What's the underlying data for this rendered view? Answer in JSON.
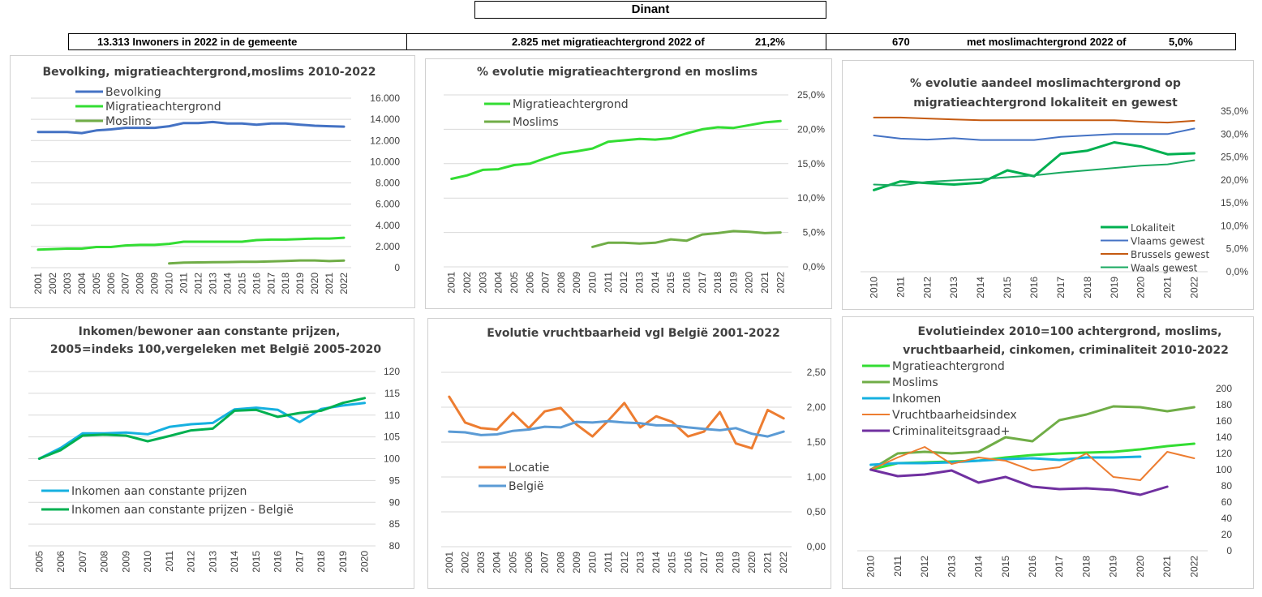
{
  "header": {
    "title": "Dinant",
    "stat1": "13.313 Inwoners in 2022 in de gemeente",
    "stat2a": "2.825 met migratieachtergrond 2022 of",
    "stat2b": "21,2%",
    "stat3a": "670",
    "stat3b": "met moslimachtergrond 2022 of",
    "stat3c": "5,0%"
  },
  "colors": {
    "bevolking": "#4472c4",
    "migratie": "#33dd33",
    "moslims": "#70ad47",
    "brussels": "#c55a11",
    "waals": "#19a960",
    "lokaliteit": "#00b050",
    "inkomen": "#16b0e0",
    "inkomen_belgie": "#00b050",
    "locatie": "#ed7d31",
    "belgie": "#5b9bd5",
    "criminaliteit": "#7030a0"
  },
  "chart_data": [
    {
      "id": "c1",
      "type": "line",
      "title": [
        "Bevolking, migratieachtergrond,moslims 2010-2022"
      ],
      "categories": [
        "2001",
        "2002",
        "2003",
        "2004",
        "2005",
        "2006",
        "2007",
        "2008",
        "2009",
        "2010",
        "2011",
        "2012",
        "2013",
        "2014",
        "2015",
        "2016",
        "2017",
        "2018",
        "2019",
        "2020",
        "2021",
        "2022"
      ],
      "ylim": [
        0,
        16000
      ],
      "yticks": [
        "0",
        "2.000",
        "4.000",
        "6.000",
        "8.000",
        "10.000",
        "12.000",
        "14.000",
        "16.000"
      ],
      "series": [
        {
          "name": "Bevolking",
          "color_key": "bevolking",
          "width": 3,
          "values": [
            12800,
            12800,
            12800,
            12700,
            12950,
            13050,
            13200,
            13200,
            13200,
            13350,
            13650,
            13650,
            13750,
            13600,
            13600,
            13500,
            13600,
            13600,
            13500,
            13400,
            13350,
            13313
          ]
        },
        {
          "name": "Migratieachtergrond",
          "color_key": "migratie",
          "width": 3,
          "values": [
            1700,
            1750,
            1800,
            1800,
            1950,
            1950,
            2100,
            2150,
            2150,
            2250,
            2450,
            2450,
            2450,
            2450,
            2450,
            2600,
            2650,
            2650,
            2700,
            2750,
            2750,
            2825
          ]
        },
        {
          "name": "Moslims",
          "color_key": "moslims",
          "width": 3,
          "values": [
            null,
            null,
            null,
            null,
            null,
            null,
            null,
            null,
            null,
            400,
            480,
            500,
            520,
            530,
            560,
            560,
            600,
            630,
            680,
            680,
            620,
            670
          ]
        }
      ]
    },
    {
      "id": "c2",
      "type": "line",
      "title": [
        "% evolutie migratieachtergrond  en moslims"
      ],
      "categories": [
        "2001",
        "2002",
        "2003",
        "2004",
        "2005",
        "2006",
        "2007",
        "2008",
        "2009",
        "2010",
        "2011",
        "2012",
        "2013",
        "2014",
        "2015",
        "2016",
        "2017",
        "2018",
        "2019",
        "2020",
        "2021",
        "2022"
      ],
      "ylim": [
        0,
        25
      ],
      "yticks": [
        "0,0%",
        "5,0%",
        "10,0%",
        "15,0%",
        "20,0%",
        "25,0%"
      ],
      "series": [
        {
          "name": "Migratieachtergrond",
          "color_key": "migratie",
          "width": 3,
          "values": [
            12.8,
            13.3,
            14.1,
            14.2,
            14.8,
            15.0,
            15.8,
            16.5,
            16.8,
            17.2,
            18.2,
            18.4,
            18.6,
            18.5,
            18.7,
            19.4,
            20.0,
            20.3,
            20.2,
            20.6,
            21.0,
            21.2
          ]
        },
        {
          "name": "Moslims",
          "color_key": "moslims",
          "width": 3,
          "values": [
            null,
            null,
            null,
            null,
            null,
            null,
            null,
            null,
            null,
            2.9,
            3.5,
            3.5,
            3.4,
            3.5,
            4.0,
            3.8,
            4.7,
            4.9,
            5.2,
            5.1,
            4.9,
            5.0
          ]
        }
      ]
    },
    {
      "id": "c3",
      "type": "line",
      "title": [
        "% evolutie aandeel moslimachtergrond op",
        "migratieachtergrond lokaliteit  en gewest"
      ],
      "categories": [
        "2010",
        "2011",
        "2012",
        "2013",
        "2014",
        "2015",
        "2016",
        "2017",
        "2018",
        "2019",
        "2020",
        "2021",
        "2022"
      ],
      "ylim": [
        0,
        35
      ],
      "yticks": [
        "0,0%",
        "5,0%",
        "10,0%",
        "15,0%",
        "20,0%",
        "25,0%",
        "30,0%",
        "35,0%"
      ],
      "series": [
        {
          "name": "Lokaliteit",
          "color_key": "lokaliteit",
          "width": 3,
          "values": [
            17.8,
            19.7,
            19.3,
            19.0,
            19.4,
            22.1,
            20.8,
            25.7,
            26.4,
            28.2,
            27.3,
            25.6,
            25.8
          ]
        },
        {
          "name": "Vlaams gewest",
          "color_key": "bevolking",
          "width": 2,
          "values": [
            29.7,
            29.0,
            28.8,
            29.1,
            28.7,
            28.7,
            28.7,
            29.4,
            29.7,
            30.0,
            30.0,
            30.0,
            31.2
          ]
        },
        {
          "name": "Brussels gewest",
          "color_key": "brussels",
          "width": 2,
          "values": [
            33.6,
            33.6,
            33.4,
            33.2,
            33.0,
            33.0,
            33.0,
            33.0,
            33.0,
            33.0,
            32.7,
            32.5,
            32.9
          ]
        },
        {
          "name": "Waals gewest",
          "color_key": "waals",
          "width": 2,
          "values": [
            19.0,
            18.8,
            19.6,
            19.9,
            20.2,
            20.6,
            21.0,
            21.6,
            22.1,
            22.6,
            23.1,
            23.4,
            24.3
          ]
        }
      ]
    },
    {
      "id": "c4",
      "type": "line",
      "title": [
        "Inkomen/bewoner aan constante prijzen,",
        "2005=indeks 100,vergeleken met België 2005-2020"
      ],
      "categories": [
        "2005",
        "2006",
        "2007",
        "2008",
        "2009",
        "2010",
        "2011",
        "2012",
        "2013",
        "2014",
        "2015",
        "2016",
        "2017",
        "2018",
        "2019",
        "2020"
      ],
      "ylim": [
        80,
        120
      ],
      "yticks": [
        "80",
        "85",
        "90",
        "95",
        "100",
        "105",
        "110",
        "115",
        "120"
      ],
      "series": [
        {
          "name": "Inkomen aan constante prijzen",
          "color_key": "inkomen",
          "width": 3,
          "values": [
            100,
            102.5,
            105.8,
            105.8,
            106.0,
            105.6,
            107.3,
            107.9,
            108.2,
            111.3,
            111.7,
            111.2,
            108.4,
            111.4,
            112.2,
            112.8
          ]
        },
        {
          "name": "Inkomen aan constante prijzen - België",
          "color_key": "inkomen_belgie",
          "width": 3,
          "values": [
            100,
            102.0,
            105.3,
            105.5,
            105.3,
            104.0,
            105.2,
            106.5,
            106.9,
            111.0,
            111.2,
            109.6,
            110.5,
            111.0,
            112.8,
            113.9
          ]
        }
      ]
    },
    {
      "id": "c5",
      "type": "line",
      "title": [
        "Evolutie vruchtbaarheid vgl België 2001-2022"
      ],
      "categories": [
        "2001",
        "2002",
        "2003",
        "2004",
        "2005",
        "2006",
        "2007",
        "2008",
        "2009",
        "2010",
        "2011",
        "2012",
        "2013",
        "2014",
        "2015",
        "2016",
        "2017",
        "2018",
        "2019",
        "2020",
        "2021",
        "2022"
      ],
      "ylim": [
        0,
        2.5
      ],
      "yticks": [
        "0,00",
        "0,50",
        "1,00",
        "1,50",
        "2,00",
        "2,50"
      ],
      "series": [
        {
          "name": "Locatie",
          "color_key": "locatie",
          "width": 3,
          "values": [
            2.15,
            1.78,
            1.7,
            1.68,
            1.92,
            1.7,
            1.94,
            1.99,
            1.75,
            1.58,
            1.81,
            2.06,
            1.71,
            1.87,
            1.79,
            1.58,
            1.65,
            1.93,
            1.48,
            1.41,
            1.96,
            1.84
          ]
        },
        {
          "name": "België",
          "color_key": "belgie",
          "width": 3,
          "values": [
            1.65,
            1.64,
            1.6,
            1.61,
            1.66,
            1.68,
            1.72,
            1.71,
            1.79,
            1.78,
            1.8,
            1.78,
            1.77,
            1.74,
            1.74,
            1.71,
            1.69,
            1.67,
            1.7,
            1.62,
            1.58,
            1.65
          ]
        }
      ]
    },
    {
      "id": "c6",
      "type": "line",
      "title": [
        "Evolutieindex 2010=100 achtergrond, moslims,",
        "vruchtbaarheid, cinkomen, criminaliteit  2010-2022"
      ],
      "categories": [
        "2010",
        "2011",
        "2012",
        "2013",
        "2014",
        "2015",
        "2016",
        "2017",
        "2018",
        "2019",
        "2020",
        "2021",
        "2022"
      ],
      "ylim": [
        0,
        200
      ],
      "yticks": [
        "0",
        "20",
        "40",
        "60",
        "80",
        "100",
        "120",
        "140",
        "160",
        "180",
        "200"
      ],
      "series": [
        {
          "name": "Mgratieachtergrond",
          "color_key": "migratie",
          "width": 3,
          "values": [
            100,
            108,
            109,
            110,
            111,
            115,
            118,
            120,
            121,
            122,
            125,
            129,
            132
          ]
        },
        {
          "name": "Moslims",
          "color_key": "moslims",
          "width": 3,
          "values": [
            100,
            120,
            122,
            120,
            122,
            140,
            135,
            161,
            168,
            178,
            177,
            172,
            177
          ]
        },
        {
          "name": "Inkomen",
          "color_key": "inkomen",
          "width": 3,
          "values": [
            106,
            108,
            108,
            109,
            111,
            113,
            114,
            112,
            115,
            115,
            116,
            null,
            null
          ]
        },
        {
          "name": "Vruchtbaarheidsindex",
          "color_key": "locatie",
          "width": 2,
          "values": [
            100,
            115,
            128,
            107,
            115,
            111,
            99,
            103,
            120,
            91,
            87,
            122,
            114
          ]
        },
        {
          "name": "Criminaliteitsgraad+",
          "color_key": "criminaliteit",
          "width": 3,
          "values": [
            100,
            92,
            94,
            99,
            84,
            91,
            79,
            76,
            77,
            75,
            69,
            79,
            null
          ]
        }
      ]
    }
  ]
}
